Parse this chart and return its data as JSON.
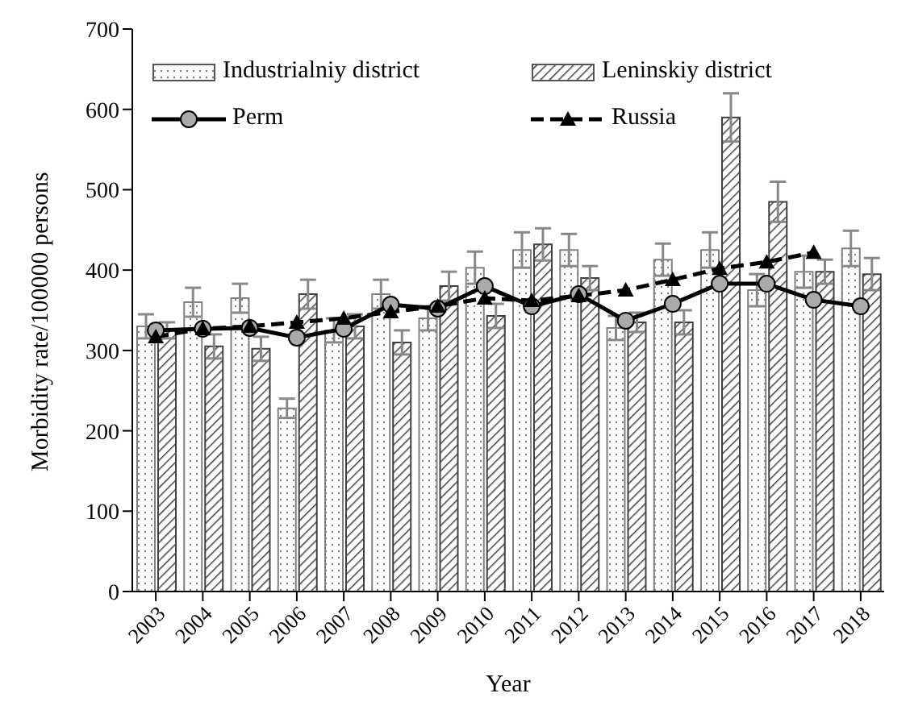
{
  "chart_data": {
    "type": "bar",
    "xlabel": "Year",
    "ylabel": "Morbidity rate/100000 persons",
    "categories": [
      "2003",
      "2004",
      "2005",
      "2006",
      "2007",
      "2008",
      "2009",
      "2010",
      "2011",
      "2012",
      "2013",
      "2014",
      "2015",
      "2016",
      "2017",
      "2018"
    ],
    "series": [
      {
        "name": "Industrialniy district",
        "color": "#808080",
        "values": [
          330,
          360,
          365,
          228,
          325,
          370,
          340,
          403,
          425,
          425,
          328,
          413,
          425,
          375,
          398,
          427
        ],
        "errors": [
          15,
          18,
          18,
          12,
          15,
          18,
          15,
          20,
          22,
          20,
          15,
          20,
          22,
          20,
          20,
          22
        ]
      },
      {
        "name": "Leninskiy district",
        "color": "#404040",
        "values": [
          325,
          305,
          302,
          370,
          330,
          310,
          380,
          343,
          432,
          390,
          335,
          335,
          590,
          485,
          398,
          395
        ],
        "errors": [
          10,
          15,
          15,
          18,
          15,
          15,
          18,
          15,
          20,
          15,
          12,
          15,
          30,
          25,
          15,
          20
        ]
      },
      {
        "name": "Perm",
        "type": "line",
        "color": "#000000",
        "marker": "circle",
        "line_style": "solid",
        "values": [
          325,
          327,
          328,
          316,
          327,
          357,
          352,
          380,
          355,
          370,
          337,
          358,
          383,
          383,
          363,
          355
        ]
      },
      {
        "name": "Russia",
        "type": "line",
        "color": "#000000",
        "marker": "triangle",
        "line_style": "dashed",
        "values": [
          317,
          327,
          330,
          335,
          340,
          348,
          355,
          365,
          362,
          368,
          375,
          388,
          402,
          410,
          422,
          null
        ]
      }
    ],
    "ylim": [
      0,
      700
    ],
    "yticks": [
      0,
      100,
      200,
      300,
      400,
      500,
      600,
      700
    ],
    "grid": false,
    "legend": "top left"
  }
}
